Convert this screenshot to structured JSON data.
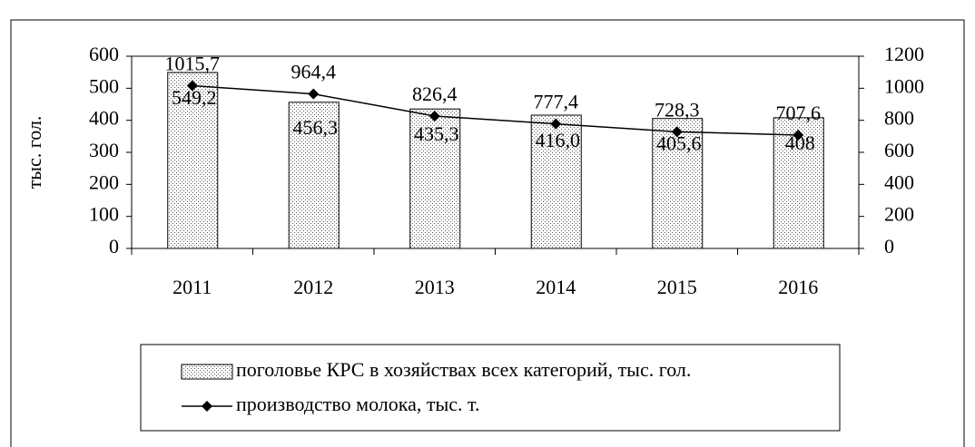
{
  "chart_data": {
    "type": "bar",
    "y_label": "тыс. гол.",
    "categories": [
      "2011",
      "2012",
      "2013",
      "2014",
      "2015",
      "2016"
    ],
    "series": [
      {
        "name": "поголовье КРС в хозяйствах всех категорий, тыс. гол.",
        "type": "bar",
        "color": "#e8e8e8",
        "values": [
          549.2,
          456.3,
          435.3,
          416.0,
          405.6,
          408
        ],
        "value_labels": [
          "549,2",
          "456,3",
          "435,3",
          "416,0",
          "405,6",
          "408"
        ]
      },
      {
        "name": "производство молока, тыс. т.",
        "type": "line",
        "axis": "y2",
        "color": "#000000",
        "values": [
          1015.7,
          964.4,
          826.4,
          777.4,
          728.3,
          707.6
        ],
        "value_labels": [
          "1015,7",
          "964,4",
          "826,4",
          "777,4",
          "728,3",
          "707,6"
        ]
      }
    ],
    "ylim": [
      0,
      600
    ],
    "yticks": [
      0,
      100,
      200,
      300,
      400,
      500,
      600
    ],
    "y2lim": [
      0,
      1200
    ],
    "y2ticks": [
      0,
      200,
      400,
      600,
      800,
      1000,
      1200
    ],
    "legend": "bottom"
  }
}
